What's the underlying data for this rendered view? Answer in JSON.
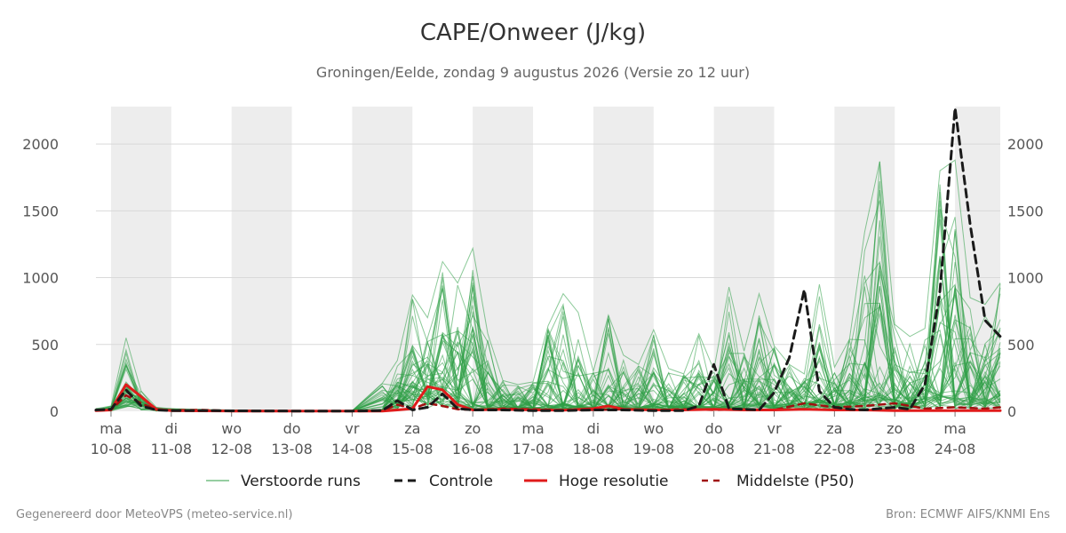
{
  "header": {
    "title": "CAPE/Onweer (J/kg)",
    "subtitle": "Groningen/Eelde, zondag  9 augustus 2026 (Versie zo 12 uur)"
  },
  "footer": {
    "left": "Gegenereerd door MeteoVPS (meteo-service.nl)",
    "right": "Bron: ECMWF AIFS/KNMI Ens"
  },
  "colors": {
    "ensemble": "#2e9e45",
    "control": "#1a1a1a",
    "high_res": "#e01b1b",
    "median": "#a01010",
    "night_band": "#ededed",
    "grid": "#d9d9d9"
  },
  "chart_data": {
    "type": "line",
    "title": "CAPE/Onweer (J/kg)",
    "xlabel": "",
    "ylabel": "",
    "ylim": [
      0,
      2280
    ],
    "yticks": [
      0,
      500,
      1000,
      1500,
      2000
    ],
    "y_axis_both_sides": true,
    "grid": "horizontal",
    "legend_position": "bottom",
    "x_range_days": [
      -0.25,
      14.75
    ],
    "x_ticks": [
      {
        "day": "ma",
        "date": "10-08"
      },
      {
        "day": "di",
        "date": "11-08"
      },
      {
        "day": "wo",
        "date": "12-08"
      },
      {
        "day": "do",
        "date": "13-08"
      },
      {
        "day": "vr",
        "date": "14-08"
      },
      {
        "day": "za",
        "date": "15-08"
      },
      {
        "day": "zo",
        "date": "16-08"
      },
      {
        "day": "ma",
        "date": "17-08"
      },
      {
        "day": "di",
        "date": "18-08"
      },
      {
        "day": "wo",
        "date": "19-08"
      },
      {
        "day": "do",
        "date": "20-08"
      },
      {
        "day": "vr",
        "date": "21-08"
      },
      {
        "day": "za",
        "date": "22-08"
      },
      {
        "day": "zo",
        "date": "23-08"
      },
      {
        "day": "ma",
        "date": "24-08"
      }
    ],
    "shaded_days": [
      "10-08",
      "12-08",
      "14-08",
      "16-08",
      "18-08",
      "20-08",
      "22-08",
      "24-08"
    ],
    "legend": [
      "Verstoorde runs",
      "Controle",
      "Hoge resolutie",
      "Middelste (P50)"
    ],
    "series": [
      {
        "name": "Controle",
        "style": "dashed",
        "x": [
          -0.25,
          0,
          0.25,
          0.5,
          0.75,
          1,
          1.5,
          2,
          3,
          4,
          4.5,
          4.75,
          5,
          5.25,
          5.5,
          5.75,
          6,
          6.5,
          7,
          7.5,
          8,
          8.5,
          9,
          9.5,
          9.75,
          10,
          10.25,
          10.5,
          10.75,
          11,
          11.25,
          11.5,
          11.75,
          12,
          12.25,
          12.5,
          12.75,
          13,
          13.25,
          13.5,
          13.75,
          14,
          14.25,
          14.5,
          14.75
        ],
        "y": [
          10,
          15,
          160,
          40,
          10,
          5,
          5,
          3,
          2,
          2,
          5,
          80,
          10,
          30,
          130,
          20,
          10,
          10,
          5,
          5,
          10,
          10,
          5,
          5,
          40,
          350,
          20,
          15,
          10,
          140,
          400,
          910,
          150,
          30,
          15,
          10,
          20,
          30,
          15,
          200,
          900,
          2270,
          1400,
          680,
          560
        ]
      },
      {
        "name": "Hoge resolutie",
        "style": "solid",
        "x": [
          -0.25,
          0,
          0.25,
          0.5,
          0.75,
          1,
          1.5,
          2,
          3,
          4,
          4.5,
          4.75,
          5,
          5.25,
          5.5,
          5.75,
          6,
          6.5,
          7,
          7.5,
          8,
          8.25,
          8.5,
          9,
          9.5,
          10,
          10.5,
          11,
          11.5,
          12,
          12.5,
          13,
          13.5,
          14,
          14.5,
          14.75
        ],
        "y": [
          5,
          10,
          200,
          110,
          15,
          5,
          3,
          2,
          2,
          2,
          2,
          10,
          20,
          185,
          160,
          50,
          10,
          15,
          10,
          8,
          20,
          40,
          15,
          10,
          10,
          15,
          10,
          10,
          15,
          10,
          10,
          5,
          5,
          5,
          5,
          5
        ]
      },
      {
        "name": "Middelste (P50)",
        "style": "dashed",
        "x": [
          -0.25,
          0,
          0.25,
          0.5,
          0.75,
          1,
          1.5,
          2,
          3,
          4,
          4.5,
          4.75,
          5,
          5.25,
          5.5,
          5.75,
          6,
          6.5,
          7,
          7.5,
          8,
          8.5,
          9,
          9.5,
          10,
          10.5,
          11,
          11.5,
          12,
          12.5,
          13,
          13.5,
          14,
          14.5,
          14.75
        ],
        "y": [
          5,
          10,
          120,
          60,
          12,
          8,
          10,
          3,
          2,
          2,
          2,
          50,
          20,
          60,
          40,
          15,
          10,
          20,
          15,
          10,
          10,
          15,
          10,
          15,
          10,
          15,
          10,
          60,
          30,
          40,
          60,
          20,
          30,
          20,
          30
        ]
      }
    ],
    "ensemble": {
      "name": "Verstoorde runs",
      "x": [
        -0.25,
        0,
        0.25,
        0.5,
        0.75,
        1,
        1.5,
        2,
        3,
        4,
        4.5,
        4.75,
        5,
        5.25,
        5.5,
        5.75,
        6,
        6.25,
        6.5,
        6.75,
        7,
        7.25,
        7.5,
        7.75,
        8,
        8.25,
        8.5,
        8.75,
        9,
        9.25,
        9.5,
        9.75,
        10,
        10.25,
        10.5,
        10.75,
        11,
        11.25,
        11.5,
        11.75,
        12,
        12.25,
        12.5,
        12.75,
        13,
        13.25,
        13.5,
        13.75,
        14,
        14.25,
        14.5,
        14.75
      ],
      "members": 50,
      "max_per_step": [
        20,
        40,
        550,
        150,
        30,
        20,
        15,
        10,
        5,
        5,
        210,
        380,
        870,
        700,
        1120,
        960,
        1220,
        580,
        230,
        200,
        220,
        640,
        880,
        740,
        300,
        720,
        420,
        350,
        610,
        320,
        280,
        580,
        310,
        930,
        450,
        880,
        490,
        350,
        280,
        950,
        330,
        540,
        1340,
        1870,
        650,
        560,
        620,
        1800,
        1880,
        850,
        800,
        960
      ],
      "median_per_step": [
        10,
        10,
        120,
        50,
        10,
        8,
        6,
        4,
        2,
        2,
        10,
        60,
        150,
        90,
        160,
        100,
        40,
        30,
        25,
        20,
        20,
        30,
        40,
        35,
        20,
        30,
        25,
        20,
        40,
        25,
        30,
        30,
        25,
        40,
        35,
        45,
        30,
        40,
        35,
        60,
        40,
        50,
        80,
        90,
        60,
        55,
        70,
        90,
        80,
        70,
        60,
        80
      ]
    }
  }
}
